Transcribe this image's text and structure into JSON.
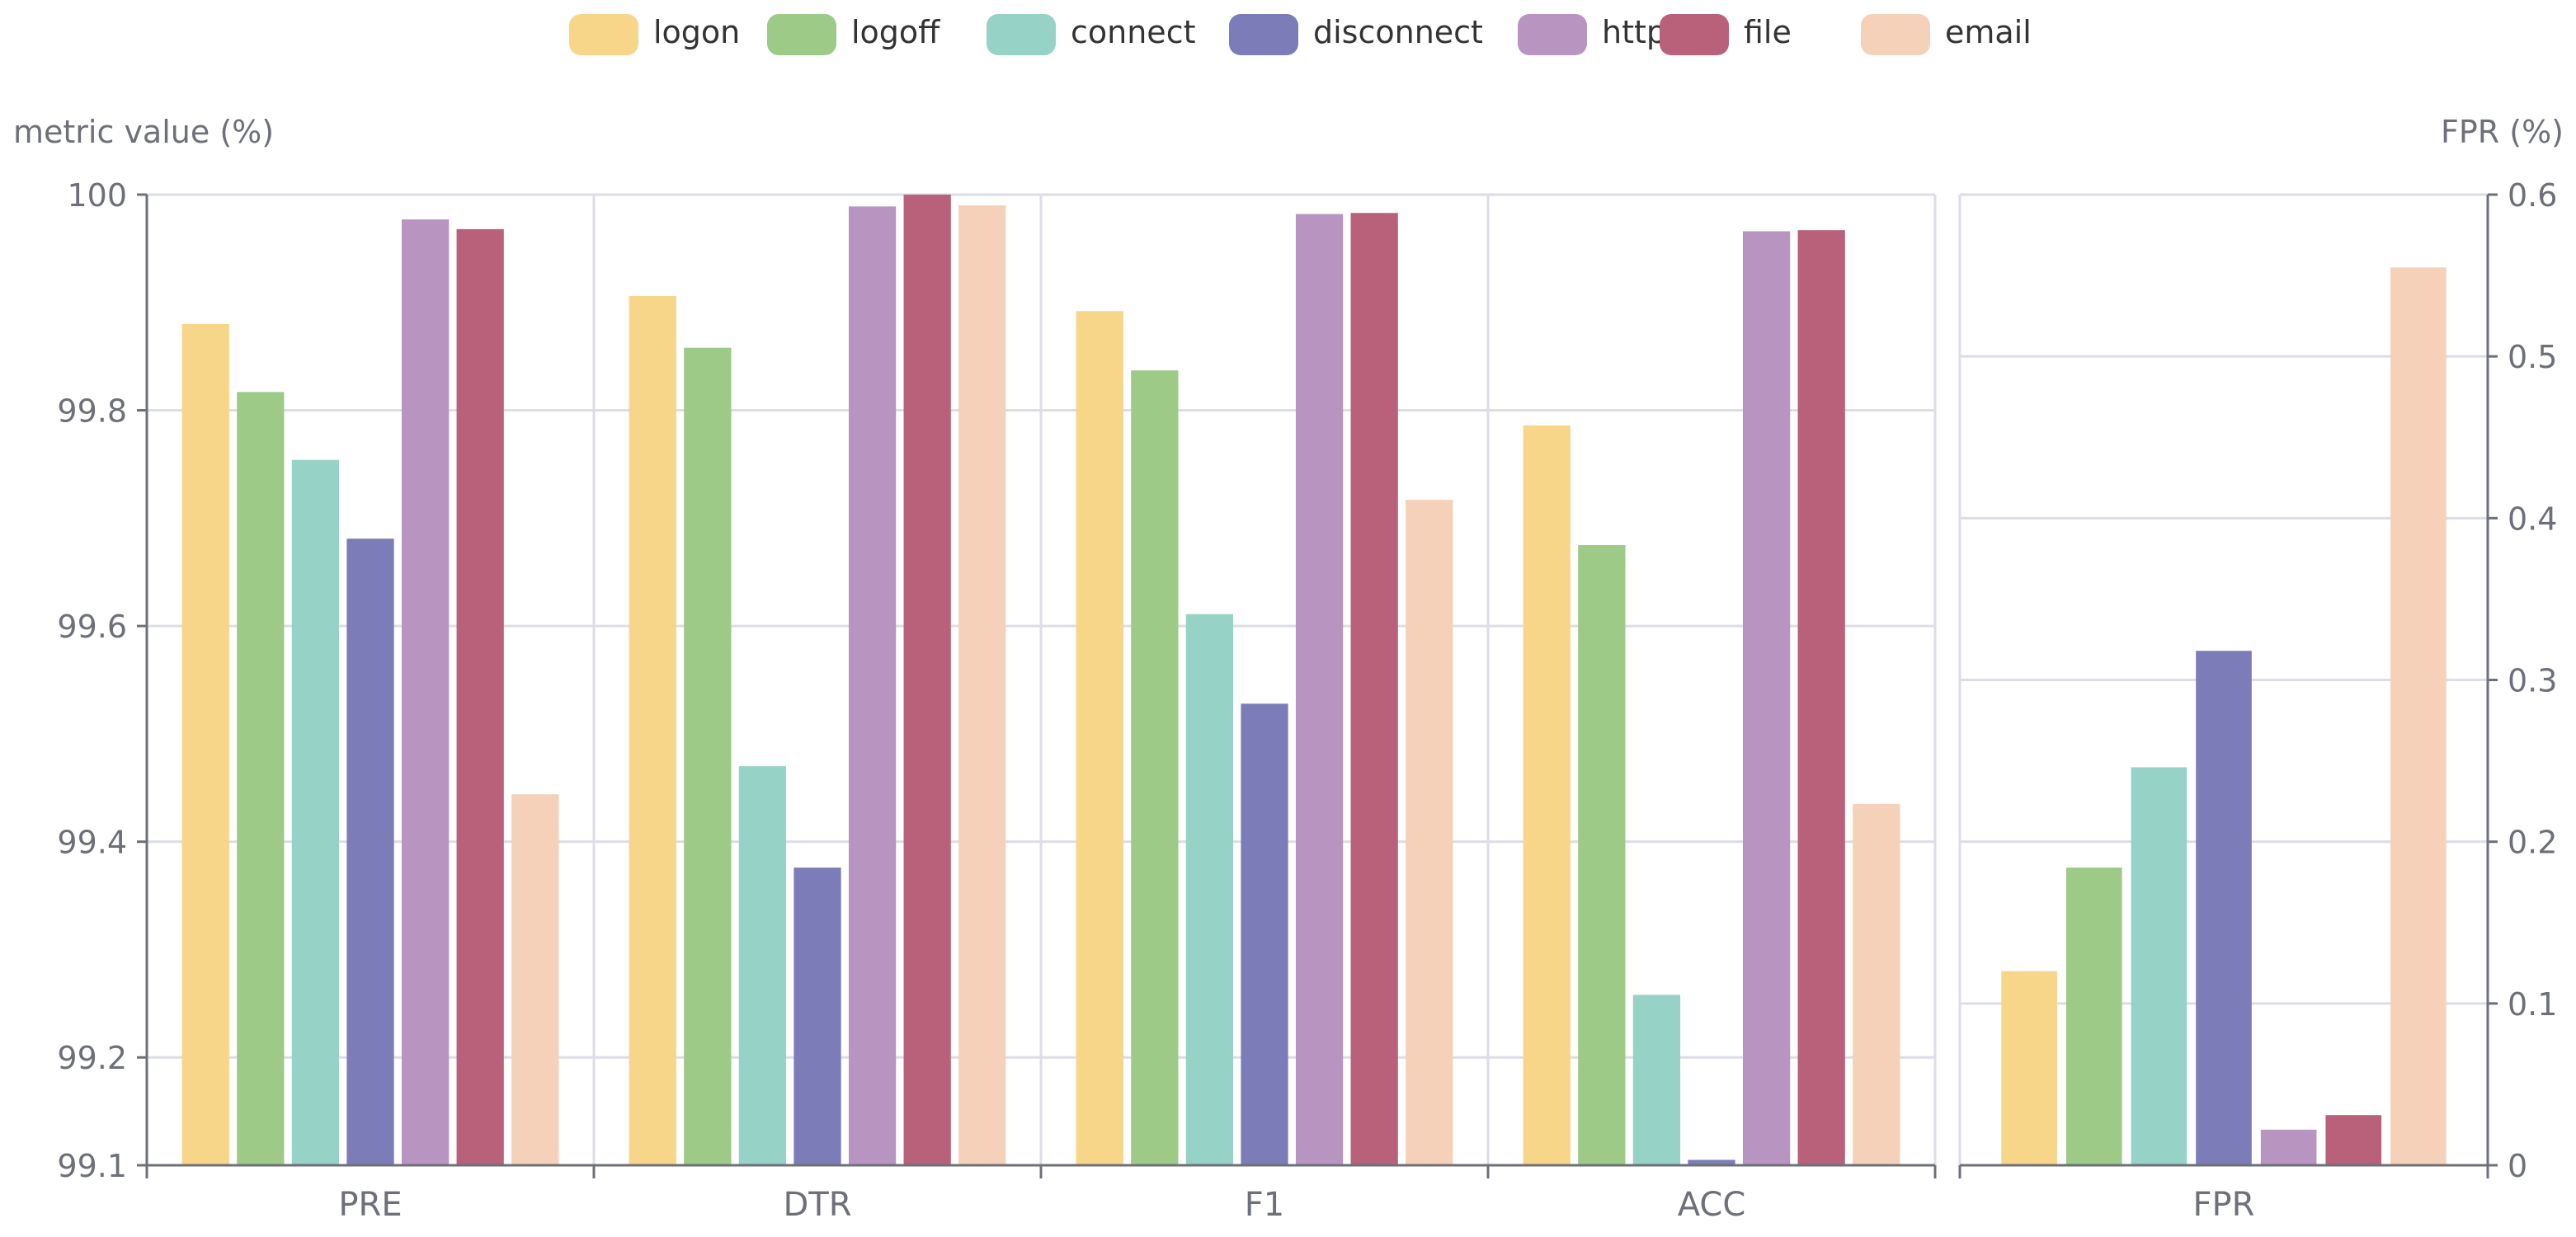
{
  "chart_data": {
    "type": "bar",
    "legend": {
      "position": "top-center"
    },
    "grid": true,
    "series": [
      {
        "name": "logon",
        "color": "#f7d68a"
      },
      {
        "name": "logoff",
        "color": "#9dca87"
      },
      {
        "name": "connect",
        "color": "#97d2c6"
      },
      {
        "name": "disconnect",
        "color": "#7c7db8"
      },
      {
        "name": "http",
        "color": "#b894c1"
      },
      {
        "name": "file",
        "color": "#b9607b"
      },
      {
        "name": "email",
        "color": "#f6d1b9"
      }
    ],
    "left_panel": {
      "ylabel": "metric value (%)",
      "ylim": [
        99.1,
        100
      ],
      "yticks": [
        "99.1",
        "99.2",
        "99.4",
        "99.6",
        "99.8",
        "100"
      ],
      "categories": [
        "PRE",
        "DTR",
        "F1",
        "ACC"
      ],
      "values": {
        "PRE": [
          99.88,
          99.817,
          99.754,
          99.681,
          99.977,
          99.968,
          99.444
        ],
        "DTR": [
          99.906,
          99.858,
          99.47,
          99.376,
          99.989,
          100.0,
          99.99
        ],
        "F1": [
          99.892,
          99.837,
          99.611,
          99.528,
          99.982,
          99.983,
          99.717
        ],
        "ACC": [
          99.786,
          99.675,
          99.258,
          99.105,
          99.966,
          99.967,
          99.435
        ]
      }
    },
    "right_panel": {
      "ylabel": "FPR (%)",
      "ylim": [
        0,
        0.6
      ],
      "yticks": [
        "0",
        "0.1",
        "0.2",
        "0.3",
        "0.4",
        "0.5",
        "0.6"
      ],
      "categories": [
        "FPR"
      ],
      "values": {
        "FPR": [
          0.12,
          0.184,
          0.246,
          0.318,
          0.022,
          0.031,
          0.555
        ]
      }
    }
  }
}
